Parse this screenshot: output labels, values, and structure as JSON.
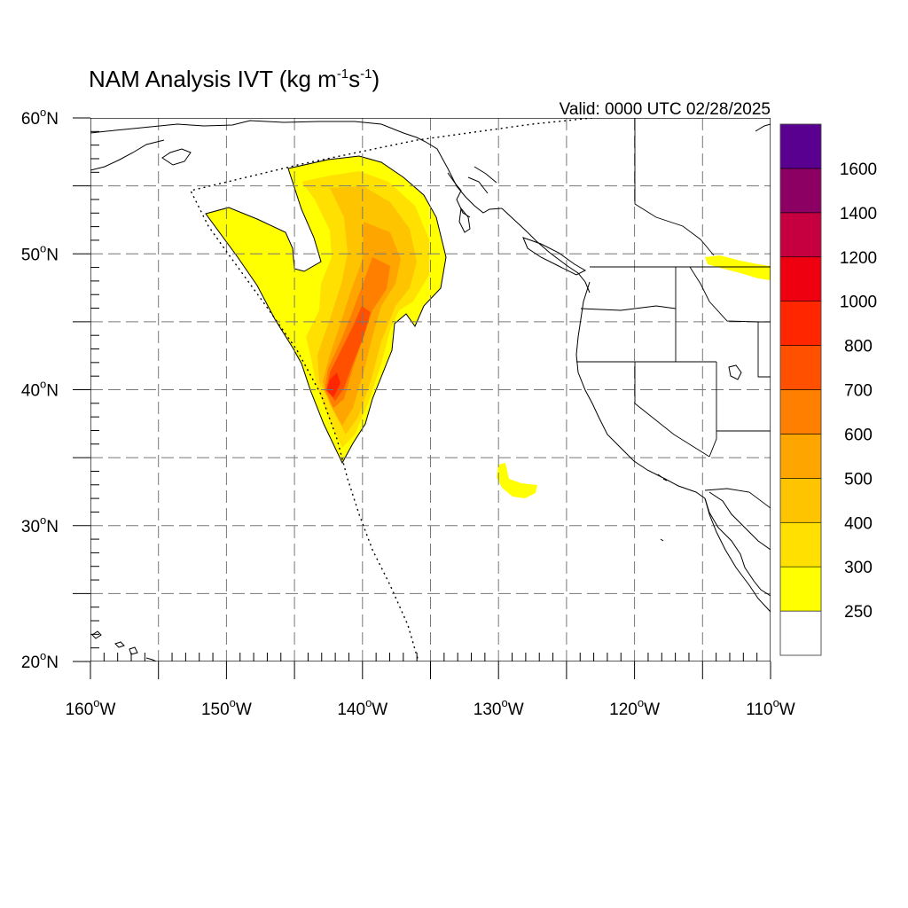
{
  "title": {
    "main": "NAM Analysis IVT (kg m",
    "sup1": "-1",
    "mid": "s",
    "sup2": "-1",
    "end": ")"
  },
  "valid_label": "Valid: 0000 UTC 02/28/2025",
  "map": {
    "projection": "lat-lon",
    "lon_range": [
      -160,
      -110
    ],
    "lat_range": [
      20,
      60
    ],
    "grid": "dashed",
    "lon_ticks": [
      {
        "value": -160,
        "num": "160",
        "hemi": "W"
      },
      {
        "value": -150,
        "num": "150",
        "hemi": "W"
      },
      {
        "value": -140,
        "num": "140",
        "hemi": "W"
      },
      {
        "value": -130,
        "num": "130",
        "hemi": "W"
      },
      {
        "value": -120,
        "num": "120",
        "hemi": "W"
      },
      {
        "value": -110,
        "num": "110",
        "hemi": "W"
      }
    ],
    "lat_ticks": [
      {
        "value": 60,
        "num": "60",
        "hemi": "N"
      },
      {
        "value": 50,
        "num": "50",
        "hemi": "N"
      },
      {
        "value": 40,
        "num": "40",
        "hemi": "N"
      },
      {
        "value": 30,
        "num": "30",
        "hemi": "N"
      },
      {
        "value": 20,
        "num": "20",
        "hemi": "N"
      }
    ],
    "degree_symbol": "o"
  },
  "colorbar": {
    "levels": [
      "250",
      "300",
      "400",
      "500",
      "600",
      "700",
      "800",
      "1000",
      "1200",
      "1400",
      "1600"
    ],
    "colors": [
      "#ffffff",
      "#ffff00",
      "#ffe000",
      "#ffc400",
      "#ffa500",
      "#ff7f00",
      "#ff5000",
      "#ff2600",
      "#ee0010",
      "#c60040",
      "#8c0064",
      "#5a0091"
    ]
  },
  "colors": {
    "coastline": "#000000",
    "domain_boundary": "#000000",
    "grid": "#777777"
  }
}
